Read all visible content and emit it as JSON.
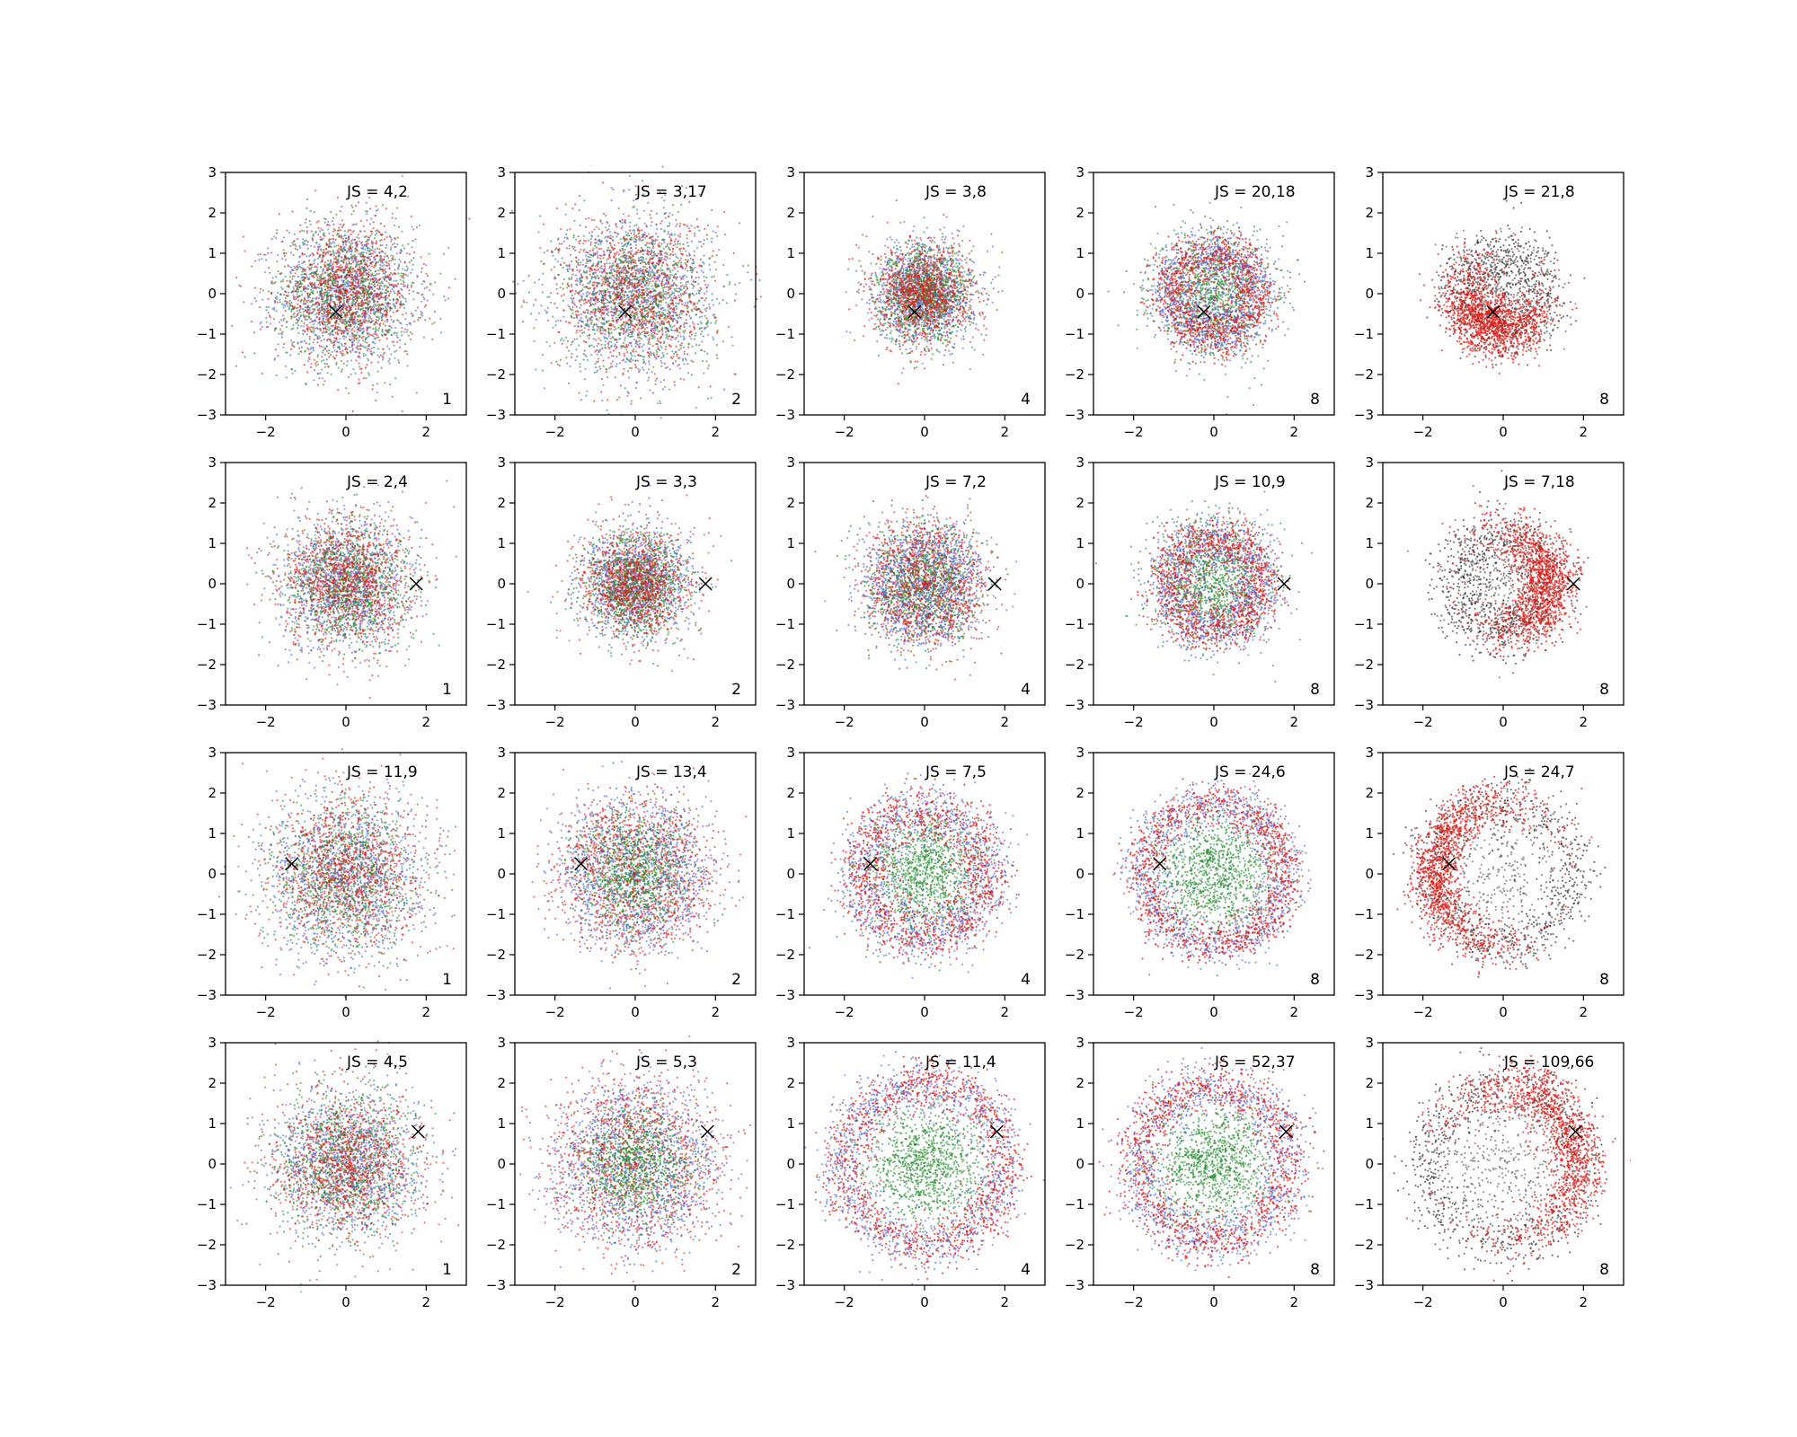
{
  "chart_data": {
    "type": "scatter",
    "layout": {
      "rows": 4,
      "cols": 5
    },
    "xlim": [
      -3,
      3
    ],
    "ylim": [
      -3,
      3
    ],
    "xticks": [
      -2,
      0,
      2
    ],
    "yticks": [
      -3,
      -2,
      -1,
      0,
      1,
      2,
      3
    ],
    "series_colors": {
      "red": "#e8150f",
      "blue": "#4a5fe0",
      "green": "#1f8a2a",
      "black": "#333333"
    },
    "panels": [
      {
        "row": 0,
        "col": 0,
        "js": "JS = 4,2",
        "corner": "1",
        "marker": [
          -0.25,
          -0.45
        ],
        "pattern": "blob",
        "spread": 0.85
      },
      {
        "row": 0,
        "col": 1,
        "js": "JS = 3,17",
        "corner": "2",
        "marker": [
          -0.25,
          -0.45
        ],
        "pattern": "blob",
        "spread": 0.95
      },
      {
        "row": 0,
        "col": 2,
        "js": "JS = 3,8",
        "corner": "4",
        "marker": [
          -0.25,
          -0.45
        ],
        "pattern": "blob",
        "spread": 0.6
      },
      {
        "row": 0,
        "col": 3,
        "js": "JS = 20,18",
        "corner": "8",
        "marker": [
          -0.25,
          -0.45
        ],
        "pattern": "ring",
        "radius": 1.05,
        "width": 0.35
      },
      {
        "row": 0,
        "col": 4,
        "js": "JS = 21,8",
        "corner": "8",
        "marker": [
          -0.25,
          -0.45
        ],
        "pattern": "blackred",
        "radius": 1.0,
        "width": 0.35
      },
      {
        "row": 1,
        "col": 0,
        "js": "JS = 2,4",
        "corner": "1",
        "marker": [
          1.75,
          0.0
        ],
        "pattern": "blob",
        "spread": 0.8
      },
      {
        "row": 1,
        "col": 1,
        "js": "JS = 3,3",
        "corner": "2",
        "marker": [
          1.75,
          0.0
        ],
        "pattern": "blob",
        "spread": 0.65
      },
      {
        "row": 1,
        "col": 2,
        "js": "JS = 7,2",
        "corner": "4",
        "marker": [
          1.75,
          0.0
        ],
        "pattern": "ringsoft",
        "radius": 1.0,
        "width": 0.45
      },
      {
        "row": 1,
        "col": 3,
        "js": "JS = 10,9",
        "corner": "8",
        "marker": [
          1.75,
          0.0
        ],
        "pattern": "ring",
        "radius": 1.15,
        "width": 0.35
      },
      {
        "row": 1,
        "col": 4,
        "js": "JS = 7,18",
        "corner": "8",
        "marker": [
          1.75,
          0.0
        ],
        "pattern": "blackred",
        "radius": 1.2,
        "width": 0.35
      },
      {
        "row": 2,
        "col": 0,
        "js": "JS = 11,9",
        "corner": "1",
        "marker": [
          -1.35,
          0.25
        ],
        "pattern": "blob",
        "spread": 0.95
      },
      {
        "row": 2,
        "col": 1,
        "js": "JS = 13,4",
        "corner": "2",
        "marker": [
          -1.35,
          0.25
        ],
        "pattern": "ringsoft",
        "radius": 1.3,
        "width": 0.55
      },
      {
        "row": 2,
        "col": 2,
        "js": "JS = 7,5",
        "corner": "4",
        "marker": [
          -1.35,
          0.25
        ],
        "pattern": "ring",
        "radius": 1.55,
        "width": 0.4
      },
      {
        "row": 2,
        "col": 3,
        "js": "JS = 24,6",
        "corner": "8",
        "marker": [
          -1.35,
          0.25
        ],
        "pattern": "ring",
        "radius": 1.75,
        "width": 0.3
      },
      {
        "row": 2,
        "col": 4,
        "js": "JS = 24,7",
        "corner": "8",
        "marker": [
          -1.35,
          0.25
        ],
        "pattern": "blackred",
        "radius": 1.75,
        "width": 0.3
      },
      {
        "row": 3,
        "col": 0,
        "js": "JS = 4,5",
        "corner": "1",
        "marker": [
          1.8,
          0.8
        ],
        "pattern": "blob",
        "spread": 0.9
      },
      {
        "row": 3,
        "col": 1,
        "js": "JS = 5,3",
        "corner": "2",
        "marker": [
          1.8,
          0.8
        ],
        "pattern": "ringsoft",
        "radius": 1.4,
        "width": 0.6
      },
      {
        "row": 3,
        "col": 2,
        "js": "JS = 11,4",
        "corner": "4",
        "marker": [
          1.8,
          0.8
        ],
        "pattern": "ring",
        "radius": 2.0,
        "width": 0.35
      },
      {
        "row": 3,
        "col": 3,
        "js": "JS = 52,37",
        "corner": "8",
        "marker": [
          1.8,
          0.8
        ],
        "pattern": "ring",
        "radius": 1.9,
        "width": 0.35
      },
      {
        "row": 3,
        "col": 4,
        "js": "JS = 109,66",
        "corner": "8",
        "marker": [
          1.8,
          0.8
        ],
        "pattern": "blackred",
        "radius": 1.9,
        "width": 0.35
      }
    ]
  }
}
